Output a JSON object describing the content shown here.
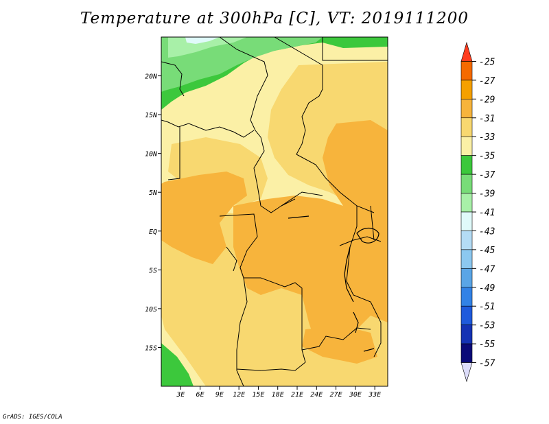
{
  "title": "Temperature at 300hPa [C], VT: 2019111200",
  "credit": "GrADS: IGES/COLA",
  "map": {
    "lat_labels": [
      "20N",
      "15N",
      "10N",
      "5N",
      "EQ",
      "5S",
      "10S",
      "15S"
    ],
    "lat_values": [
      20,
      15,
      10,
      5,
      0,
      -5,
      -10,
      -15
    ],
    "lon_labels": [
      "3E",
      "6E",
      "9E",
      "12E",
      "15E",
      "18E",
      "21E",
      "24E",
      "27E",
      "30E",
      "33E"
    ],
    "lon_values": [
      3,
      6,
      9,
      12,
      15,
      18,
      21,
      24,
      27,
      30,
      33
    ],
    "lon_range": [
      0,
      35
    ],
    "lat_range": [
      -20,
      25
    ]
  },
  "colorbar": {
    "labels": [
      "-25",
      "-27",
      "-29",
      "-31",
      "-33",
      "-35",
      "-37",
      "-39",
      "-41",
      "-43",
      "-45",
      "-47",
      "-49",
      "-51",
      "-53",
      "-55",
      "-57"
    ],
    "colors": [
      "#ff3c1e",
      "#f56a00",
      "#f5a000",
      "#f7b43c",
      "#f8d870",
      "#fbf0a6",
      "#3cc83c",
      "#78dc78",
      "#a8f0a8",
      "#e0fafa",
      "#b4dcf5",
      "#8cc8f0",
      "#5aa5e6",
      "#3282e6",
      "#1e5adc",
      "#1432b4",
      "#0a0a78",
      "#dcdcfa"
    ]
  }
}
